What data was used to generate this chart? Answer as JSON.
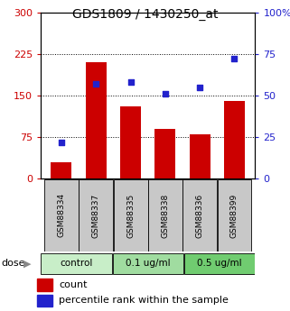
{
  "title": "GDS1809 / 1430250_at",
  "samples": [
    "GSM88334",
    "GSM88337",
    "GSM88335",
    "GSM88338",
    "GSM88336",
    "GSM88399"
  ],
  "counts": [
    30,
    210,
    130,
    90,
    80,
    140
  ],
  "percentile_ranks": [
    22,
    57,
    58,
    51,
    55,
    72
  ],
  "groups": [
    {
      "label": "control",
      "indices": [
        0,
        1
      ],
      "color": "#c8eec8"
    },
    {
      "label": "0.1 ug/ml",
      "indices": [
        2,
        3
      ],
      "color": "#a0dca0"
    },
    {
      "label": "0.5 ug/ml",
      "indices": [
        4,
        5
      ],
      "color": "#70cc70"
    }
  ],
  "bar_color": "#cc0000",
  "dot_color": "#2222cc",
  "left_ylim": [
    0,
    300
  ],
  "right_ylim": [
    0,
    100
  ],
  "left_yticks": [
    0,
    75,
    150,
    225,
    300
  ],
  "right_yticks": [
    0,
    25,
    50,
    75,
    100
  ],
  "right_yticklabels": [
    "0",
    "25",
    "50",
    "75",
    "100%"
  ],
  "dotted_lines": [
    75,
    150,
    225
  ],
  "bg_color": "#ffffff",
  "axis_label_color_left": "#cc0000",
  "axis_label_color_right": "#2222cc",
  "legend_count_label": "count",
  "legend_pct_label": "percentile rank within the sample",
  "sample_bg_color": "#c8c8c8",
  "fig_width": 3.21,
  "fig_height": 3.45,
  "dpi": 100
}
